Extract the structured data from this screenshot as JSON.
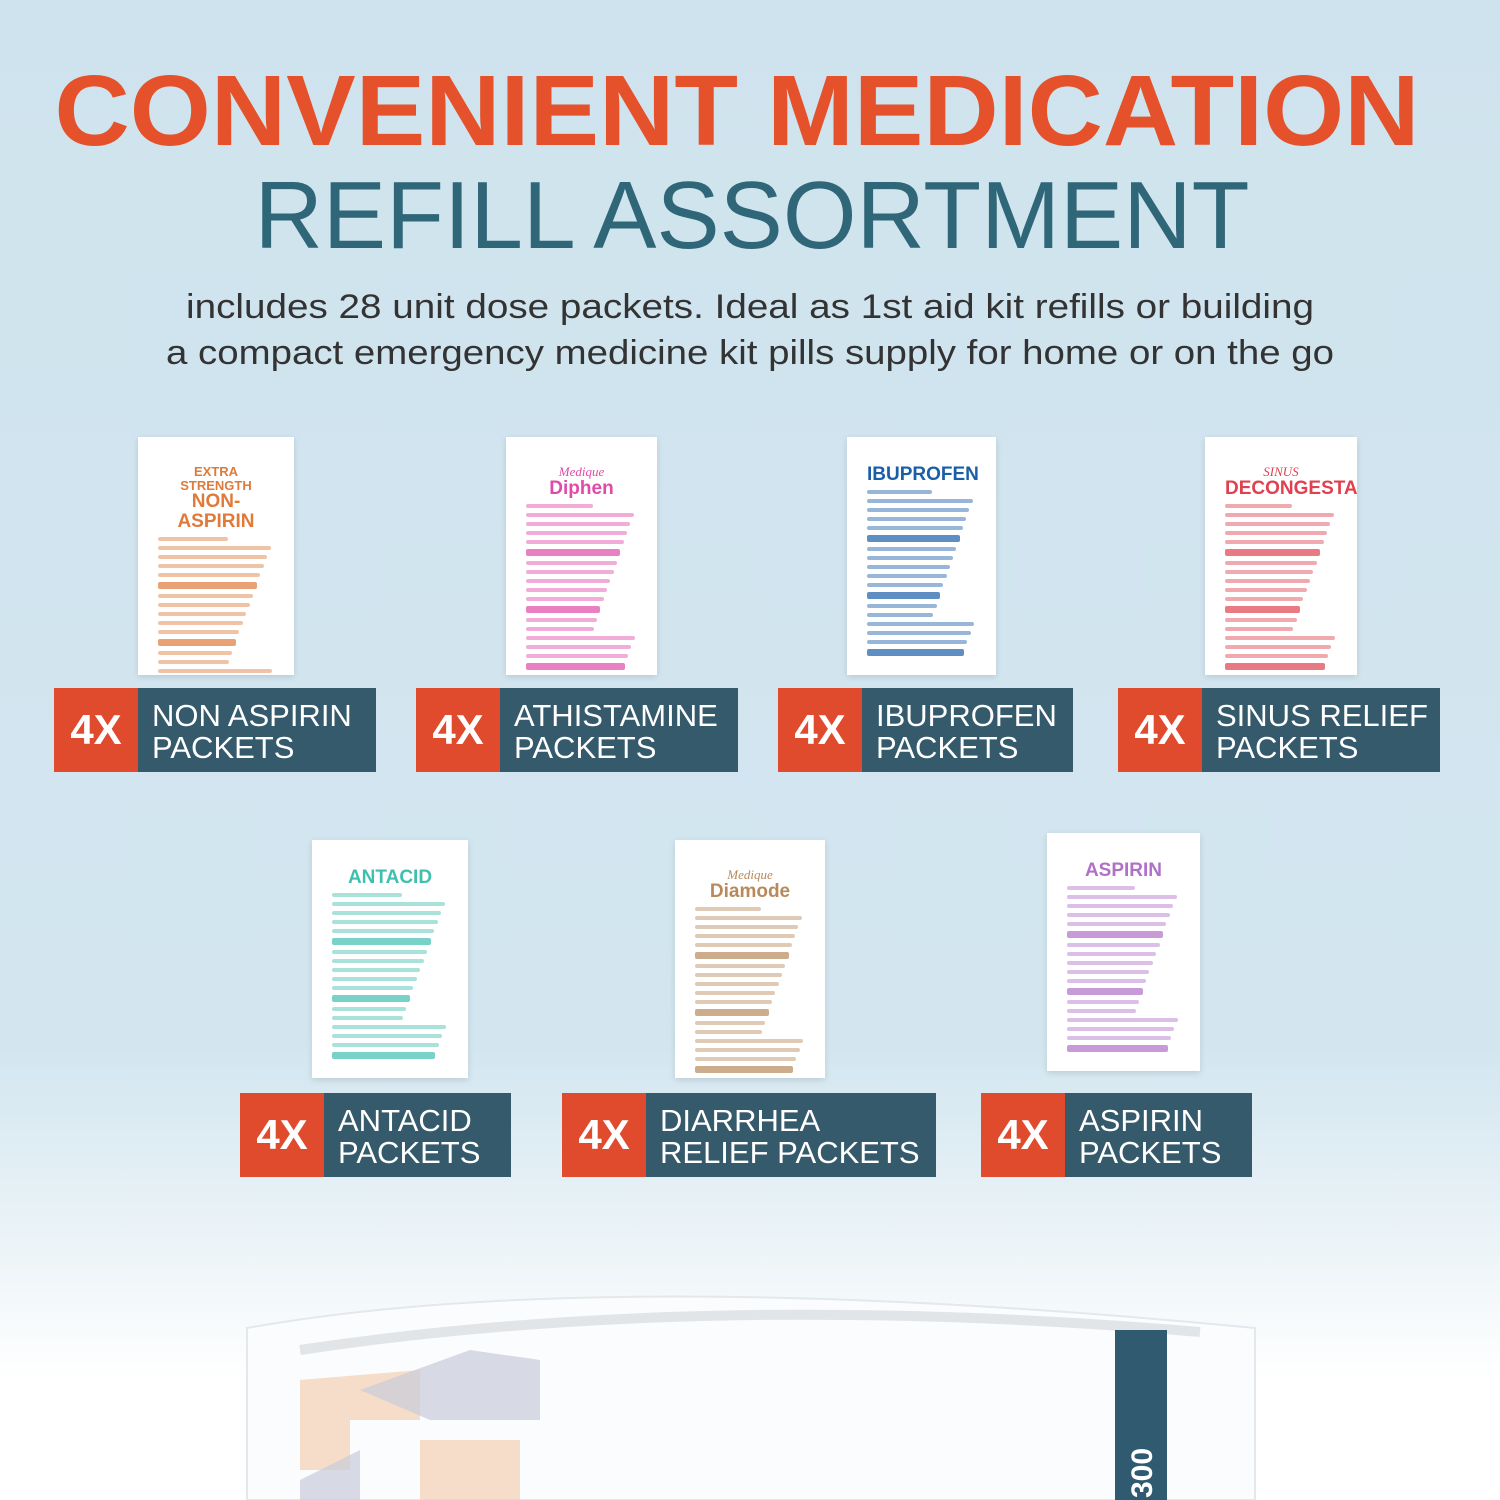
{
  "header": {
    "title_line1": "CONVENIENT MEDICATION",
    "title_line2": "REFILL ASSORTMENT",
    "subtitle": [
      "includes 28 unit dose packets. Ideal as 1st aid kit refills or building",
      "a compact emergency medicine kit pills supply for home or on the go"
    ]
  },
  "items": [
    {
      "count": "4X",
      "label": [
        "NON ASPIRIN",
        "PACKETS"
      ],
      "packet": [
        "EXTRA STRENGTH",
        "NON-ASPIRIN"
      ],
      "color": "#e07a3a"
    },
    {
      "count": "4X",
      "label": [
        "ATHISTAMINE",
        "PACKETS"
      ],
      "packet": [
        "Medique",
        "Diphen"
      ],
      "color": "#e04aa8"
    },
    {
      "count": "4X",
      "label": [
        "IBUPROFEN",
        "PACKETS"
      ],
      "packet": [
        "IBUPROFEN"
      ],
      "color": "#1a5ea8"
    },
    {
      "count": "4X",
      "label": [
        "SINUS RELIEF",
        "PACKETS"
      ],
      "packet": [
        "SINUS",
        "DECONGESTANT"
      ],
      "color": "#e0404f"
    },
    {
      "count": "4X",
      "label": [
        "ANTACID",
        "PACKETS"
      ],
      "packet": [
        "ANTACID"
      ],
      "color": "#3fbfb0"
    },
    {
      "count": "4X",
      "label": [
        "DIARRHEA",
        "RELIEF PACKETS"
      ],
      "packet": [
        "Medique",
        "Diamode"
      ],
      "color": "#b8895a"
    },
    {
      "count": "4X",
      "label": [
        "ASPIRIN",
        "PACKETS"
      ],
      "packet": [
        "ASPIRIN"
      ],
      "color": "#b070c8"
    }
  ],
  "bag": {
    "label": "300"
  }
}
